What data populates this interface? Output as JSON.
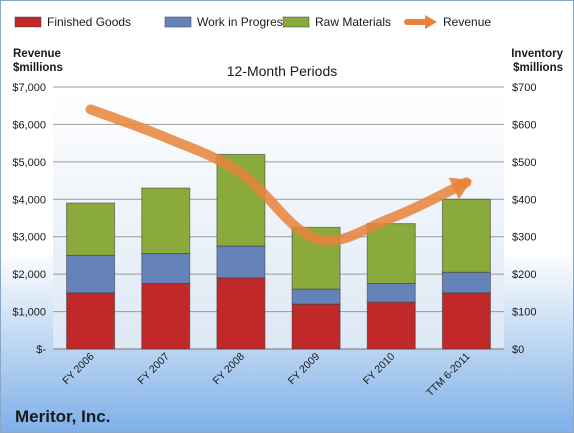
{
  "chart_data": {
    "type": "bar",
    "stacked": true,
    "title": "12-Month Periods",
    "company": "Meritor, Inc.",
    "left_axis_label": [
      "Revenue",
      "$millions"
    ],
    "right_axis_label": [
      "Inventory",
      "$millions"
    ],
    "categories": [
      "FY 2006",
      "FY 2007",
      "FY 2008",
      "FY 2009",
      "FY 2010",
      "TTM 6-2011"
    ],
    "series": [
      {
        "name": "Finished Goods",
        "color": "#c0282a",
        "values": [
          150,
          175,
          190,
          120,
          125,
          150
        ]
      },
      {
        "name": "Work in Progress",
        "color": "#6583b8",
        "values": [
          100,
          80,
          85,
          40,
          50,
          55
        ]
      },
      {
        "name": "Raw Materials",
        "color": "#8aaa3c",
        "values": [
          140,
          175,
          245,
          165,
          160,
          195
        ]
      }
    ],
    "line_series": {
      "name": "Revenue",
      "color": "#e8823a",
      "values": [
        6400,
        5650,
        4700,
        2950,
        3500,
        4450
      ]
    },
    "left_axis": {
      "min": 0,
      "max": 7000,
      "ticks": [
        "$-",
        "$1,000",
        "$2,000",
        "$3,000",
        "$4,000",
        "$5,000",
        "$6,000",
        "$7,000"
      ]
    },
    "right_axis": {
      "min": 0,
      "max": 700,
      "ticks": [
        "$0",
        "$100",
        "$200",
        "$300",
        "$400",
        "$500",
        "$600",
        "$700"
      ]
    },
    "legend_position": "top",
    "grid": true
  }
}
